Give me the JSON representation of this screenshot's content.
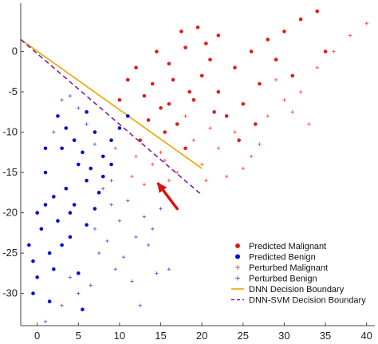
{
  "chart_data": {
    "type": "scatter",
    "title": "",
    "xlabel": "",
    "ylabel": "",
    "xlim": [
      -2,
      41
    ],
    "ylim": [
      -34,
      6
    ],
    "xticks": [
      0,
      5,
      10,
      15,
      20,
      25,
      30,
      35,
      40
    ],
    "yticks": [
      0,
      -5,
      -10,
      -15,
      -20,
      -25,
      -30
    ],
    "grid": false,
    "legend_position": "bottom-right",
    "legend": [
      {
        "label": "Predicted Malignant",
        "color": "#e31a1c",
        "marker": "dot"
      },
      {
        "label": "Predicted Benign",
        "color": "#0010d0",
        "marker": "dot"
      },
      {
        "label": "Perturbed Malignant",
        "color": "#ff4a4a",
        "marker": "plus"
      },
      {
        "label": "Perturbed Benign",
        "color": "#5a5ae0",
        "marker": "plus"
      },
      {
        "label": "DNN Decision Boundary",
        "color": "#f0a500",
        "marker": "line"
      },
      {
        "label": "DNN-SVM Decision Boundary",
        "color": "#7a1fa2",
        "marker": "dashed-line"
      }
    ],
    "series": [
      {
        "name": "Predicted Malignant",
        "color": "#e31a1c",
        "marker": "dot",
        "points": [
          [
            12.0,
            -2.0
          ],
          [
            14.0,
            -4.0
          ],
          [
            16.0,
            -1.5
          ],
          [
            18.0,
            0.5
          ],
          [
            20.0,
            -3.0
          ],
          [
            22.0,
            -5.0
          ],
          [
            24.0,
            -2.0
          ],
          [
            26.0,
            0.0
          ],
          [
            28.0,
            1.5
          ],
          [
            30.0,
            2.5
          ],
          [
            32.0,
            4.0
          ],
          [
            34.0,
            5.0
          ],
          [
            19.0,
            -6.0
          ],
          [
            15.0,
            -7.0
          ],
          [
            17.0,
            -9.0
          ],
          [
            13.0,
            -5.5
          ],
          [
            10.0,
            -6.0
          ],
          [
            11.0,
            -3.5
          ],
          [
            23.0,
            -8.0
          ],
          [
            25.0,
            -6.5
          ],
          [
            21.0,
            -1.0
          ],
          [
            16.5,
            -3.5
          ],
          [
            18.5,
            -5.0
          ],
          [
            14.5,
            0.0
          ],
          [
            20.5,
            1.0
          ],
          [
            27.0,
            -4.0
          ],
          [
            29.0,
            -1.0
          ],
          [
            31.0,
            -3.0
          ],
          [
            35.0,
            0.0
          ],
          [
            22.0,
            2.0
          ],
          [
            17.5,
            2.5
          ],
          [
            19.5,
            3.0
          ],
          [
            15.5,
            -10.0
          ],
          [
            13.5,
            -8.5
          ],
          [
            12.5,
            -11.0
          ],
          [
            24.5,
            -11.0
          ],
          [
            26.5,
            -9.0
          ],
          [
            18.0,
            -12.0
          ],
          [
            21.5,
            -7.5
          ],
          [
            16.0,
            -6.5
          ]
        ]
      },
      {
        "name": "Predicted Benign",
        "color": "#0010d0",
        "marker": "dot",
        "points": [
          [
            1.0,
            -15.0
          ],
          [
            2.0,
            -18.0
          ],
          [
            3.0,
            -12.0
          ],
          [
            4.0,
            -20.0
          ],
          [
            5.0,
            -14.0
          ],
          [
            6.0,
            -16.0
          ],
          [
            7.0,
            -10.0
          ],
          [
            8.0,
            -13.0
          ],
          [
            9.0,
            -11.0
          ],
          [
            10.0,
            -9.5
          ],
          [
            0.5,
            -22.0
          ],
          [
            1.5,
            -25.0
          ],
          [
            2.5,
            -21.0
          ],
          [
            3.5,
            -17.0
          ],
          [
            4.5,
            -19.0
          ],
          [
            5.5,
            -12.5
          ],
          [
            6.5,
            -14.5
          ],
          [
            7.5,
            -17.5
          ],
          [
            -0.5,
            -26.0
          ],
          [
            0.0,
            -28.0
          ],
          [
            -1.0,
            -24.0
          ],
          [
            2.0,
            -27.0
          ],
          [
            3.0,
            -24.0
          ],
          [
            4.0,
            -23.0
          ],
          [
            5.0,
            -27.5
          ],
          [
            6.0,
            -21.5
          ],
          [
            7.0,
            -19.5
          ],
          [
            8.0,
            -15.5
          ],
          [
            9.0,
            -14.0
          ],
          [
            1.0,
            -19.0
          ],
          [
            -0.5,
            -30.0
          ],
          [
            1.5,
            -31.0
          ],
          [
            5.5,
            -32.0
          ],
          [
            2.5,
            -8.0
          ],
          [
            3.5,
            -9.5
          ],
          [
            4.5,
            -11.0
          ],
          [
            0.0,
            -20.0
          ],
          [
            1.0,
            -12.0
          ],
          [
            6.0,
            -7.5
          ],
          [
            11.0,
            -8.0
          ]
        ]
      },
      {
        "name": "Perturbed Malignant",
        "color": "#ff4a4a",
        "marker": "plus",
        "points": [
          [
            20.0,
            -14.0
          ],
          [
            22.0,
            -12.0
          ],
          [
            24.0,
            -10.0
          ],
          [
            26.0,
            -13.0
          ],
          [
            28.0,
            -8.0
          ],
          [
            30.0,
            -6.0
          ],
          [
            32.0,
            -5.0
          ],
          [
            34.0,
            -2.0
          ],
          [
            36.0,
            0.0
          ],
          [
            38.0,
            2.0
          ],
          [
            40.0,
            3.5
          ],
          [
            14.0,
            -14.0
          ],
          [
            15.0,
            -12.5
          ],
          [
            17.0,
            -15.0
          ],
          [
            19.0,
            -11.0
          ],
          [
            21.0,
            -9.5
          ],
          [
            23.0,
            -15.5
          ],
          [
            12.0,
            -13.0
          ],
          [
            11.5,
            -15.5
          ],
          [
            9.5,
            -12.0
          ],
          [
            18.0,
            -8.0
          ],
          [
            16.0,
            -16.0
          ],
          [
            27.0,
            -11.5
          ],
          [
            29.0,
            -3.5
          ],
          [
            33.0,
            -9.0
          ],
          [
            13.0,
            -16.5
          ],
          [
            15.5,
            -13.5
          ],
          [
            25.0,
            -14.5
          ],
          [
            31.0,
            -7.5
          ],
          [
            20.5,
            -16.0
          ]
        ]
      },
      {
        "name": "Perturbed Benign",
        "color": "#5a5ae0",
        "marker": "plus",
        "points": [
          [
            3.0,
            -6.0
          ],
          [
            4.0,
            -5.5
          ],
          [
            5.0,
            -7.0
          ],
          [
            6.0,
            -9.0
          ],
          [
            7.0,
            -11.5
          ],
          [
            8.0,
            -17.0
          ],
          [
            9.0,
            -19.0
          ],
          [
            10.0,
            -21.0
          ],
          [
            11.0,
            -18.5
          ],
          [
            12.0,
            -23.0
          ],
          [
            13.0,
            -20.5
          ],
          [
            14.0,
            -22.0
          ],
          [
            7.5,
            -25.0
          ],
          [
            9.5,
            -27.0
          ],
          [
            11.5,
            -28.5
          ],
          [
            6.5,
            -29.0
          ],
          [
            3.0,
            -31.5
          ],
          [
            5.0,
            -30.0
          ],
          [
            8.5,
            -23.5
          ],
          [
            10.5,
            -25.5
          ],
          [
            13.5,
            -24.0
          ],
          [
            15.0,
            -19.5
          ],
          [
            2.0,
            -10.0
          ],
          [
            4.0,
            -28.0
          ],
          [
            1.0,
            -33.5
          ],
          [
            16.0,
            -27.0
          ],
          [
            12.5,
            -31.5
          ],
          [
            7.0,
            -22.0
          ],
          [
            9.0,
            -16.0
          ],
          [
            14.5,
            -27.5
          ]
        ]
      }
    ],
    "lines": [
      {
        "name": "DNN Decision Boundary",
        "color": "#f0a500",
        "dashed": false,
        "points": [
          [
            -2.0,
            1.5
          ],
          [
            20.0,
            -14.5
          ]
        ]
      },
      {
        "name": "DNN-SVM Decision Boundary",
        "color": "#7a1fa2",
        "dashed": true,
        "points": [
          [
            -2.0,
            1.5
          ],
          [
            20.0,
            -17.8
          ]
        ]
      }
    ],
    "annotations": [
      {
        "type": "arrow",
        "color": "#e01010",
        "from": [
          17.0,
          -19.5
        ],
        "to": [
          14.7,
          -16.4
        ]
      }
    ]
  }
}
